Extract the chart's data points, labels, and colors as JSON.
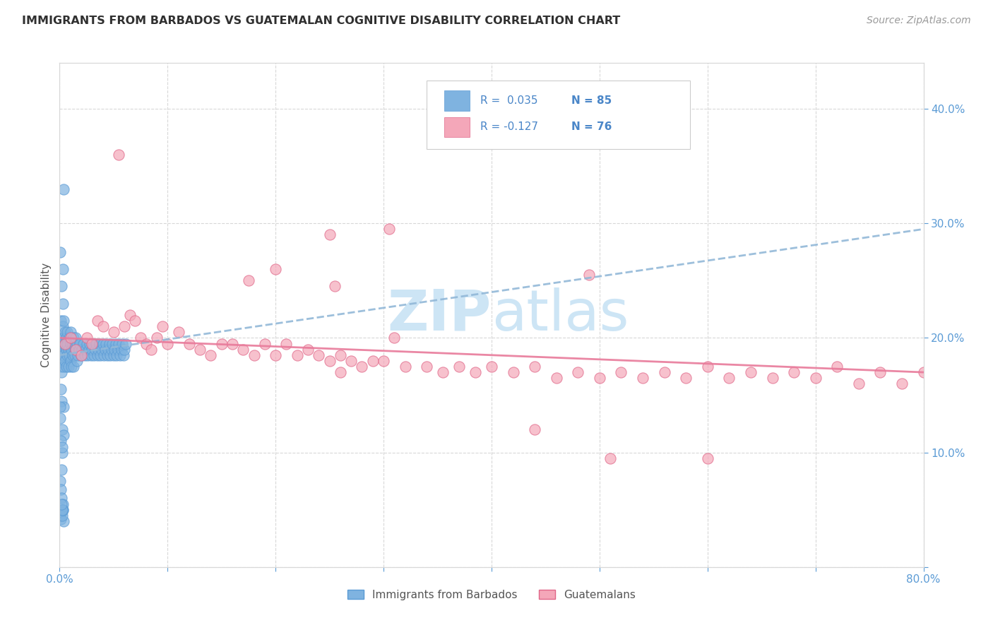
{
  "title": "IMMIGRANTS FROM BARBADOS VS GUATEMALAN COGNITIVE DISABILITY CORRELATION CHART",
  "source": "Source: ZipAtlas.com",
  "ylabel": "Cognitive Disability",
  "x_min": 0.0,
  "x_max": 0.8,
  "y_min": 0.0,
  "y_max": 0.44,
  "color_blue": "#7fb3e0",
  "color_blue_edge": "#5b9bd5",
  "color_pink": "#f4a7b9",
  "color_pink_edge": "#e06688",
  "color_trend_blue": "#92b8d8",
  "color_trend_pink": "#e87a9a",
  "background_color": "#ffffff",
  "grid_color": "#d8d8d8",
  "title_color": "#303030",
  "axis_label_color": "#5b9bd5",
  "ylabel_color": "#555555",
  "watermark_color": "#cde5f5",
  "legend_text_color": "#4a86c8",
  "trend_blue_start_y": 0.185,
  "trend_blue_end_y": 0.295,
  "trend_pink_start_y": 0.2,
  "trend_pink_end_y": 0.17,
  "barbados_x": [
    0.001,
    0.001,
    0.001,
    0.002,
    0.002,
    0.002,
    0.002,
    0.003,
    0.003,
    0.003,
    0.004,
    0.004,
    0.004,
    0.005,
    0.005,
    0.005,
    0.006,
    0.006,
    0.006,
    0.007,
    0.007,
    0.007,
    0.008,
    0.008,
    0.009,
    0.009,
    0.01,
    0.01,
    0.01,
    0.011,
    0.011,
    0.012,
    0.012,
    0.013,
    0.013,
    0.014,
    0.014,
    0.015,
    0.015,
    0.016,
    0.016,
    0.017,
    0.018,
    0.019,
    0.02,
    0.021,
    0.022,
    0.023,
    0.024,
    0.025,
    0.026,
    0.027,
    0.028,
    0.029,
    0.03,
    0.031,
    0.032,
    0.033,
    0.034,
    0.035,
    0.036,
    0.037,
    0.038,
    0.039,
    0.04,
    0.041,
    0.042,
    0.043,
    0.044,
    0.045,
    0.046,
    0.047,
    0.048,
    0.049,
    0.05,
    0.051,
    0.052,
    0.053,
    0.054,
    0.055,
    0.056,
    0.057,
    0.058,
    0.059,
    0.06,
    0.061
  ],
  "barbados_y": [
    0.195,
    0.175,
    0.215,
    0.19,
    0.2,
    0.185,
    0.17,
    0.195,
    0.21,
    0.18,
    0.2,
    0.185,
    0.175,
    0.195,
    0.205,
    0.18,
    0.19,
    0.2,
    0.175,
    0.195,
    0.185,
    0.205,
    0.19,
    0.175,
    0.2,
    0.185,
    0.195,
    0.18,
    0.205,
    0.19,
    0.175,
    0.195,
    0.185,
    0.2,
    0.175,
    0.195,
    0.185,
    0.19,
    0.2,
    0.18,
    0.195,
    0.185,
    0.19,
    0.195,
    0.185,
    0.19,
    0.195,
    0.185,
    0.19,
    0.195,
    0.185,
    0.19,
    0.195,
    0.185,
    0.19,
    0.195,
    0.185,
    0.19,
    0.195,
    0.185,
    0.19,
    0.195,
    0.185,
    0.19,
    0.195,
    0.185,
    0.19,
    0.195,
    0.185,
    0.19,
    0.195,
    0.185,
    0.19,
    0.195,
    0.185,
    0.19,
    0.195,
    0.185,
    0.19,
    0.195,
    0.185,
    0.19,
    0.195,
    0.185,
    0.19,
    0.195
  ],
  "barbados_y_extra": [
    0.275,
    0.26,
    0.245,
    0.23,
    0.215,
    0.1,
    0.085,
    0.075,
    0.068,
    0.06,
    0.055,
    0.05,
    0.048,
    0.045,
    0.042,
    0.04,
    0.155,
    0.145,
    0.14,
    0.13,
    0.12,
    0.115,
    0.11,
    0.105,
    0.33,
    0.14,
    0.045,
    0.05,
    0.05,
    0.055
  ],
  "guatemalan_x": [
    0.005,
    0.01,
    0.015,
    0.02,
    0.025,
    0.03,
    0.035,
    0.04,
    0.05,
    0.06,
    0.065,
    0.07,
    0.075,
    0.08,
    0.085,
    0.09,
    0.095,
    0.1,
    0.11,
    0.12,
    0.13,
    0.14,
    0.15,
    0.16,
    0.17,
    0.18,
    0.19,
    0.2,
    0.21,
    0.22,
    0.23,
    0.24,
    0.25,
    0.26,
    0.27,
    0.28,
    0.29,
    0.3,
    0.32,
    0.34,
    0.355,
    0.37,
    0.385,
    0.4,
    0.42,
    0.44,
    0.46,
    0.48,
    0.5,
    0.52,
    0.54,
    0.56,
    0.58,
    0.6,
    0.62,
    0.64,
    0.66,
    0.68,
    0.7,
    0.72,
    0.74,
    0.76,
    0.78,
    0.8,
    0.055,
    0.25,
    0.2,
    0.175,
    0.305,
    0.255,
    0.31,
    0.26,
    0.44,
    0.51,
    0.49,
    0.6
  ],
  "guatemalan_y": [
    0.195,
    0.2,
    0.19,
    0.185,
    0.2,
    0.195,
    0.215,
    0.21,
    0.205,
    0.21,
    0.22,
    0.215,
    0.2,
    0.195,
    0.19,
    0.2,
    0.21,
    0.195,
    0.205,
    0.195,
    0.19,
    0.185,
    0.195,
    0.195,
    0.19,
    0.185,
    0.195,
    0.185,
    0.195,
    0.185,
    0.19,
    0.185,
    0.18,
    0.185,
    0.18,
    0.175,
    0.18,
    0.18,
    0.175,
    0.175,
    0.17,
    0.175,
    0.17,
    0.175,
    0.17,
    0.175,
    0.165,
    0.17,
    0.165,
    0.17,
    0.165,
    0.17,
    0.165,
    0.175,
    0.165,
    0.17,
    0.165,
    0.17,
    0.165,
    0.175,
    0.16,
    0.17,
    0.16,
    0.17,
    0.36,
    0.29,
    0.26,
    0.25,
    0.295,
    0.245,
    0.2,
    0.17,
    0.12,
    0.095,
    0.255,
    0.095
  ]
}
